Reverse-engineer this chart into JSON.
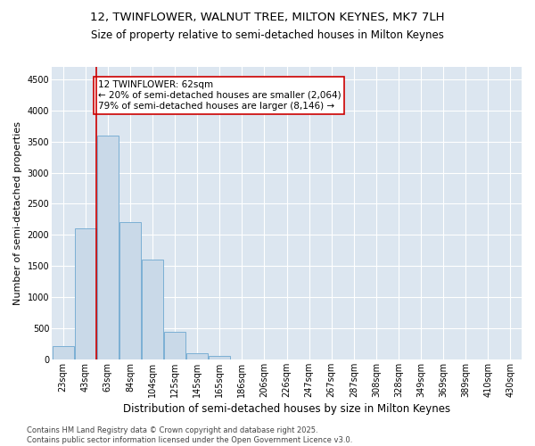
{
  "title": "12, TWINFLOWER, WALNUT TREE, MILTON KEYNES, MK7 7LH",
  "subtitle": "Size of property relative to semi-detached houses in Milton Keynes",
  "xlabel": "Distribution of semi-detached houses by size in Milton Keynes",
  "ylabel": "Number of semi-detached properties",
  "bins": [
    "23sqm",
    "43sqm",
    "63sqm",
    "84sqm",
    "104sqm",
    "125sqm",
    "145sqm",
    "165sqm",
    "186sqm",
    "206sqm",
    "226sqm",
    "247sqm",
    "267sqm",
    "287sqm",
    "308sqm",
    "328sqm",
    "349sqm",
    "369sqm",
    "389sqm",
    "410sqm",
    "430sqm"
  ],
  "values": [
    220,
    2100,
    3600,
    2200,
    1600,
    450,
    100,
    55,
    0,
    0,
    0,
    0,
    0,
    0,
    0,
    0,
    0,
    0,
    0,
    0,
    0
  ],
  "bar_color": "#c9d9e8",
  "bar_edge_color": "#7bafd4",
  "highlight_line_color": "#cc0000",
  "annotation_text": "12 TWINFLOWER: 62sqm\n← 20% of semi-detached houses are smaller (2,064)\n79% of semi-detached houses are larger (8,146) →",
  "annotation_box_color": "#cc0000",
  "ylim": [
    0,
    4700
  ],
  "yticks": [
    0,
    500,
    1000,
    1500,
    2000,
    2500,
    3000,
    3500,
    4000,
    4500
  ],
  "plot_bg_color": "#dce6f0",
  "footer": "Contains HM Land Registry data © Crown copyright and database right 2025.\nContains public sector information licensed under the Open Government Licence v3.0.",
  "title_fontsize": 9.5,
  "subtitle_fontsize": 8.5,
  "xlabel_fontsize": 8.5,
  "ylabel_fontsize": 8,
  "tick_fontsize": 7,
  "annotation_fontsize": 7.5,
  "footer_fontsize": 6
}
